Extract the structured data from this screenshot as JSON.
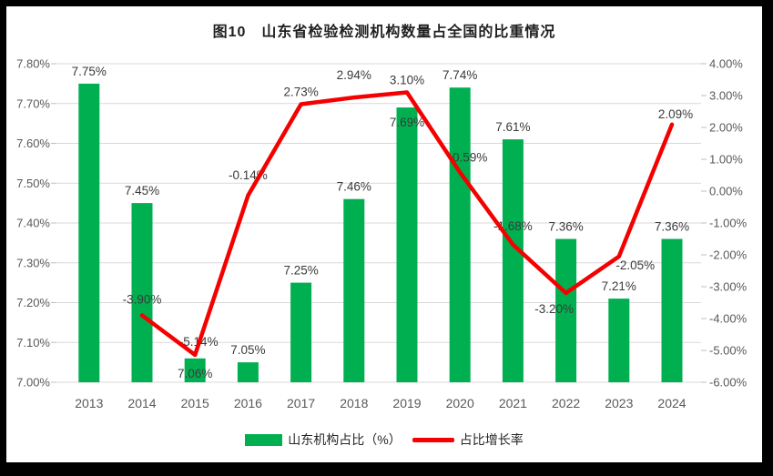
{
  "page": {
    "title": "图10　山东省检验检测机构数量占全国的比重情况"
  },
  "legend": {
    "bar_label": "山东机构占比（%）",
    "line_label": "占比增长率"
  },
  "colors": {
    "bar": "#00B050",
    "line": "#F40000",
    "gridline": "#D9D9D9",
    "tick": "#BFBFBF",
    "axis_text": "#595959",
    "label_text": "#3A3A3A",
    "frame": "#000000",
    "background": "#FFFFFF"
  },
  "chart_data": {
    "type": "bar+line",
    "title": "图10　山东省检验检测机构数量占全国的比重情况",
    "categories": [
      "2013",
      "2014",
      "2015",
      "2016",
      "2017",
      "2018",
      "2019",
      "2020",
      "2021",
      "2022",
      "2023",
      "2024"
    ],
    "series": [
      {
        "name": "山东机构占比（%）",
        "type": "bar",
        "axis": "left",
        "values": [
          7.75,
          7.45,
          7.06,
          7.05,
          7.25,
          7.46,
          7.69,
          7.74,
          7.61,
          7.36,
          7.21,
          7.36
        ],
        "labels": [
          "7.75%",
          "7.45%",
          "7.06%",
          "7.05%",
          "7.25%",
          "7.46%",
          "7.69%",
          "7.74%",
          "7.61%",
          "7.36%",
          "7.21%",
          "7.36%"
        ]
      },
      {
        "name": "占比增长率",
        "type": "line",
        "axis": "right",
        "values": [
          null,
          -3.9,
          -5.14,
          -0.14,
          2.73,
          2.94,
          3.1,
          0.59,
          -1.68,
          -3.2,
          -2.05,
          2.09
        ],
        "labels": [
          null,
          "-3.90%",
          "-5.14%",
          "-0.14%",
          "2.73%",
          "2.94%",
          "3.10%",
          "0.59%",
          "-1.68%",
          "-3.20%",
          "-2.05%",
          "2.09%"
        ]
      }
    ],
    "left_axis": {
      "min": 7.0,
      "max": 7.8,
      "step": 0.1,
      "ticks": [
        "7.80%",
        "7.70%",
        "7.60%",
        "7.50%",
        "7.40%",
        "7.30%",
        "7.20%",
        "7.10%",
        "7.00%"
      ]
    },
    "right_axis": {
      "min": -6,
      "max": 4,
      "step": 1,
      "ticks": [
        "4.00%",
        "3.00%",
        "2.00%",
        "1.00%",
        "0.00%",
        "-1.00%",
        "-2.00%",
        "-3.00%",
        "-4.00%",
        "-5.00%",
        "-6.00%"
      ]
    },
    "grid": true,
    "legend_position": "bottom",
    "layout_hints": {
      "bar_label_inside_idx": [
        2,
        6
      ],
      "line_label_offsets": [
        null,
        [
          0,
          -13
        ],
        [
          4,
          -10
        ],
        [
          0,
          -18
        ],
        [
          0,
          -9
        ],
        [
          0,
          -20
        ],
        [
          0,
          -9
        ],
        [
          11,
          -12
        ],
        [
          0,
          -16
        ],
        [
          -13,
          22
        ],
        [
          18,
          14
        ],
        [
          4,
          -7
        ]
      ]
    }
  }
}
